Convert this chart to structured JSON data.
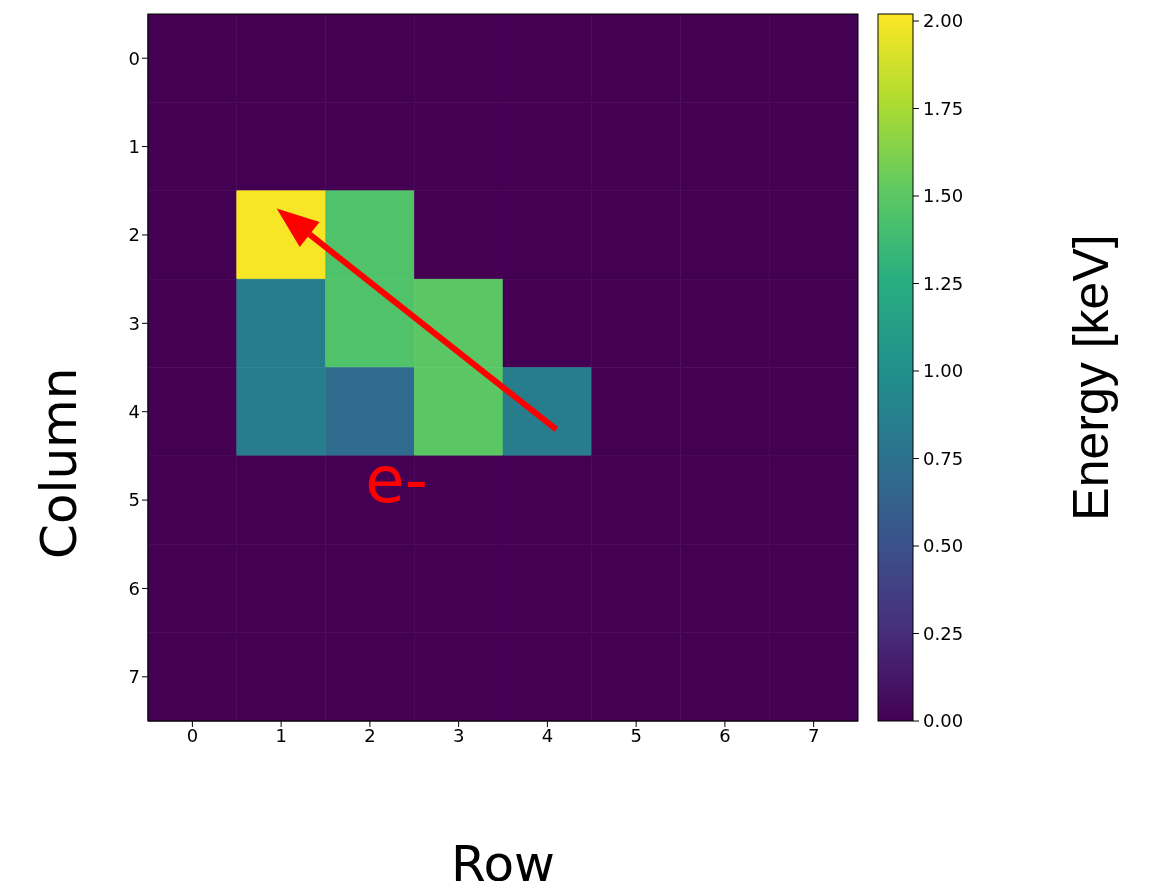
{
  "chart_data": {
    "type": "heatmap",
    "xlabel": "Row",
    "ylabel": "Column",
    "clabel": "Energy [keV]",
    "categories": [
      "0",
      "1",
      "2",
      "3",
      "4",
      "5",
      "6",
      "7"
    ],
    "y_categories": [
      "0",
      "1",
      "2",
      "3",
      "4",
      "5",
      "6",
      "7"
    ],
    "cells": [
      [
        0,
        0,
        0,
        0,
        0,
        0,
        0,
        0
      ],
      [
        0,
        0,
        0,
        0,
        0,
        0,
        0,
        0
      ],
      [
        0,
        2.0,
        1.45,
        0,
        0,
        0,
        0,
        0
      ],
      [
        0,
        0.85,
        1.45,
        1.5,
        0,
        0,
        0,
        0
      ],
      [
        0,
        0.85,
        0.7,
        1.5,
        0.85,
        0,
        0,
        0
      ],
      [
        0,
        0,
        0,
        0,
        0,
        0,
        0,
        0
      ],
      [
        0,
        0,
        0,
        0,
        0,
        0,
        0,
        0
      ],
      [
        0,
        0,
        0,
        0,
        0,
        0,
        0,
        0
      ]
    ],
    "clim": [
      0,
      2.02
    ],
    "cticks": [
      {
        "value": 0,
        "label": "0.00"
      },
      {
        "value": 0.25,
        "label": "0.25"
      },
      {
        "value": 0.5,
        "label": "0.50"
      },
      {
        "value": 0.75,
        "label": "0.75"
      },
      {
        "value": 1,
        "label": "1.00"
      },
      {
        "value": 1.25,
        "label": "1.25"
      },
      {
        "value": 1.5,
        "label": "1.50"
      },
      {
        "value": 1.75,
        "label": "1.75"
      },
      {
        "value": 2,
        "label": "2.00"
      }
    ],
    "annotations": [
      "e-"
    ]
  }
}
